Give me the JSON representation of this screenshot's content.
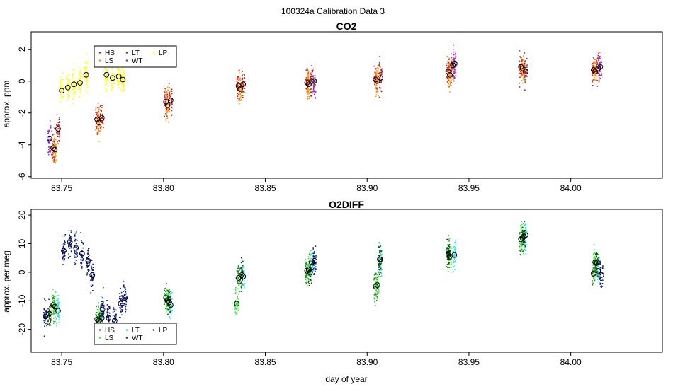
{
  "figure": {
    "suptitle": "100324a   Calibration Data 3",
    "xlabel": "day of year"
  },
  "chart_data": [
    {
      "type": "scatter",
      "title": "CO2",
      "ylabel": "approx. ppm",
      "xlabel": "",
      "xlim": [
        83.735,
        84.045
      ],
      "ylim": [
        -6.1,
        3.1
      ],
      "xticks": [
        83.75,
        83.8,
        83.85,
        83.9,
        83.95,
        84.0
      ],
      "xtick_labels": [
        "83.75",
        "83.80",
        "83.85",
        "83.90",
        "83.95",
        "84.00"
      ],
      "yticks": [
        -6,
        -4,
        -2,
        0,
        2
      ],
      "ytick_labels": [
        "-6",
        "-4",
        "-2",
        "0",
        "2"
      ],
      "legend": {
        "placement": "top-left",
        "entries": [
          {
            "label": "HS",
            "color": "#e41a1c"
          },
          {
            "label": "LS",
            "color": "#ff9900"
          },
          {
            "label": "LT",
            "color": "#b22222"
          },
          {
            "label": "WT",
            "color": "#9932cc"
          },
          {
            "label": "LP",
            "color": "#ffff00"
          }
        ]
      },
      "series": [
        {
          "name": "HS",
          "color": "#e41a1c",
          "points": [
            [
              83.7458,
              -4.2
            ],
            [
              83.7674,
              -2.4
            ],
            [
              83.8012,
              -1.3
            ],
            [
              83.8368,
              -0.3
            ],
            [
              83.8705,
              -0.1
            ],
            [
              83.9042,
              0.1
            ],
            [
              83.9398,
              0.6
            ],
            [
              83.9755,
              0.9
            ],
            [
              84.0112,
              0.7
            ]
          ]
        },
        {
          "name": "LS",
          "color": "#ff9900",
          "points": [
            [
              83.7466,
              -4.3
            ],
            [
              83.7682,
              -2.6
            ],
            [
              83.802,
              -1.5
            ],
            [
              83.8376,
              -0.5
            ],
            [
              83.8713,
              -0.2
            ],
            [
              83.905,
              0.0
            ],
            [
              83.9406,
              0.4
            ],
            [
              83.9763,
              0.8
            ],
            [
              84.012,
              0.6
            ]
          ]
        },
        {
          "name": "LT",
          "color": "#b22222",
          "points": [
            [
              83.7482,
              -3.0
            ],
            [
              83.7697,
              -2.3
            ],
            [
              83.8035,
              -1.2
            ],
            [
              83.8391,
              -0.2
            ],
            [
              83.8728,
              0.0
            ],
            [
              83.9065,
              0.2
            ],
            [
              83.9421,
              1.0
            ],
            [
              83.9778,
              0.6
            ],
            [
              84.0135,
              0.8
            ]
          ]
        },
        {
          "name": "WT",
          "color": "#9932cc",
          "points": [
            [
              83.744,
              -3.6
            ],
            [
              83.874,
              0.0
            ],
            [
              83.943,
              1.1
            ],
            [
              84.0145,
              0.9
            ]
          ]
        },
        {
          "name": "LP",
          "color": "#ffff00",
          "points": [
            [
              83.75,
              -0.6
            ],
            [
              83.753,
              -0.4
            ],
            [
              83.756,
              -0.2
            ],
            [
              83.759,
              -0.1
            ],
            [
              83.762,
              0.4
            ],
            [
              83.772,
              0.4
            ],
            [
              83.775,
              0.2
            ],
            [
              83.778,
              0.3
            ],
            [
              83.78,
              0.1
            ]
          ]
        }
      ]
    },
    {
      "type": "scatter",
      "title": "O2DIFF",
      "ylabel": "approx. per meg",
      "xlabel": "day of year",
      "xlim": [
        83.735,
        84.045
      ],
      "ylim": [
        -28,
        22
      ],
      "xticks": [
        83.75,
        83.8,
        83.85,
        83.9,
        83.95,
        84.0
      ],
      "xtick_labels": [
        "83.75",
        "83.80",
        "83.85",
        "83.90",
        "83.95",
        "84.00"
      ],
      "yticks": [
        -20,
        -10,
        0,
        10,
        20
      ],
      "ytick_labels": [
        "-20",
        "-10",
        "0",
        "10",
        "20"
      ],
      "legend": {
        "placement": "bottom-left",
        "entries": [
          {
            "label": "HS",
            "color": "#1f8f1f"
          },
          {
            "label": "LS",
            "color": "#33ee33"
          },
          {
            "label": "LT",
            "color": "#33dddd"
          },
          {
            "label": "WT",
            "color": "#0b4d0b"
          },
          {
            "label": "LP",
            "color": "#0d1a7a"
          }
        ]
      },
      "series": [
        {
          "name": "HS",
          "color": "#1f8f1f",
          "points": [
            [
              83.7458,
              -11.5
            ],
            [
              83.7674,
              -16.5
            ],
            [
              83.8012,
              -9.0
            ],
            [
              83.8368,
              -2.0
            ],
            [
              83.8705,
              0.5
            ],
            [
              83.9042,
              -5.0
            ],
            [
              83.9398,
              6.0
            ],
            [
              83.9755,
              11.5
            ],
            [
              84.0112,
              -0.5
            ]
          ]
        },
        {
          "name": "LS",
          "color": "#33ee33",
          "points": [
            [
              83.7466,
              -12.0
            ],
            [
              83.7682,
              -17.0
            ],
            [
              83.802,
              -10.0
            ],
            [
              83.836,
              -11.0
            ],
            [
              83.8713,
              1.0
            ],
            [
              83.905,
              -4.5
            ],
            [
              83.9406,
              5.5
            ],
            [
              83.9763,
              12.0
            ],
            [
              84.012,
              3.5
            ]
          ]
        },
        {
          "name": "LT",
          "color": "#33dddd",
          "points": [
            [
              83.7482,
              -13.5
            ],
            [
              83.7697,
              -16.0
            ],
            [
              83.8035,
              -11.5
            ],
            [
              83.8391,
              -1.5
            ],
            [
              83.8728,
              3.5
            ],
            [
              83.9065,
              4.5
            ],
            [
              83.9428,
              6.0
            ],
            [
              83.9778,
              13.0
            ],
            [
              84.0135,
              0.5
            ]
          ]
        },
        {
          "name": "WT",
          "color": "#0b4d0b",
          "points": [
            [
              83.744,
              -14.5
            ],
            [
              83.769,
              -17.5
            ],
            [
              83.8028,
              -10.5
            ],
            [
              83.8384,
              -1.0
            ],
            [
              83.872,
              0.0
            ],
            [
              83.9062,
              4.5
            ],
            [
              83.94,
              6.5
            ],
            [
              83.977,
              12.5
            ],
            [
              84.0128,
              3.5
            ]
          ]
        },
        {
          "name": "LP",
          "color": "#0d1a7a",
          "points": [
            [
              83.742,
              -15.5
            ],
            [
              83.751,
              7.5
            ],
            [
              83.754,
              10.5
            ],
            [
              83.757,
              8.5
            ],
            [
              83.76,
              6.5
            ],
            [
              83.763,
              4.0
            ],
            [
              83.765,
              -1.0
            ],
            [
              83.77,
              -13.0
            ],
            [
              83.773,
              -16.0
            ],
            [
              83.776,
              -17.0
            ],
            [
              83.779,
              -11.0
            ],
            [
              83.781,
              -9.0
            ],
            [
              83.8742,
              4.0
            ],
            [
              84.015,
              -1.0
            ]
          ]
        }
      ]
    }
  ]
}
